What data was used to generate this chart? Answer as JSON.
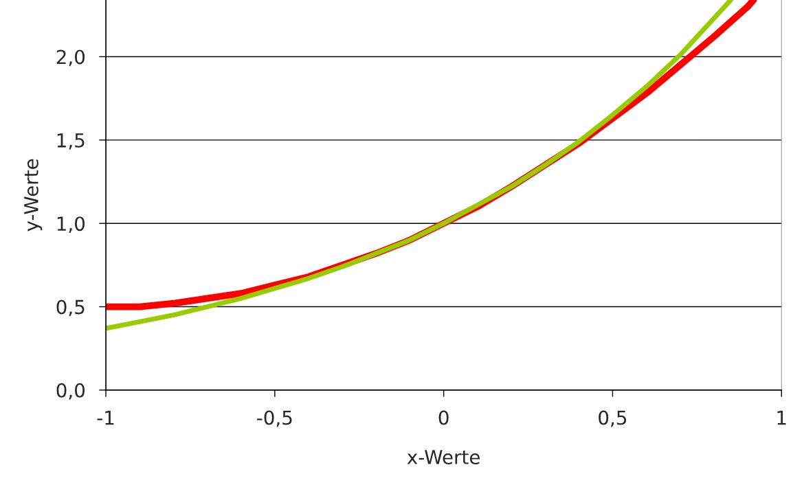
{
  "chart_data": {
    "type": "line",
    "xlabel": "x-Werte",
    "ylabel": "y-Werte",
    "xlim": [
      -1,
      1
    ],
    "ylim": [
      0,
      2.34
    ],
    "xticks": [
      {
        "value": -1,
        "label": "-1"
      },
      {
        "value": -0.5,
        "label": "-0,5"
      },
      {
        "value": 0,
        "label": "0"
      },
      {
        "value": 0.5,
        "label": "0,5"
      },
      {
        "value": 1,
        "label": "1"
      }
    ],
    "yticks": [
      {
        "value": 0,
        "label": "0,0"
      },
      {
        "value": 0.5,
        "label": "0,5"
      },
      {
        "value": 1,
        "label": "1,0"
      },
      {
        "value": 1.5,
        "label": "1,5"
      },
      {
        "value": 2,
        "label": "2,0"
      }
    ],
    "grid": "y",
    "legend": false,
    "marker": "none",
    "line_style": "solid",
    "series": [
      {
        "color": "#ff0000",
        "x": [
          -1,
          -0.9,
          -0.8,
          -0.7,
          -0.6,
          -0.5,
          -0.4,
          -0.3,
          -0.2,
          -0.1,
          0,
          0.1,
          0.2,
          0.3,
          0.4,
          0.5,
          0.6,
          0.7,
          0.8,
          0.9,
          0.917
        ],
        "values": [
          0.5,
          0.5,
          0.52,
          0.55,
          0.58,
          0.63,
          0.68,
          0.75,
          0.82,
          0.9,
          1.0,
          1.1,
          1.22,
          1.35,
          1.48,
          1.63,
          1.78,
          1.95,
          2.12,
          2.3,
          2.34
        ]
      },
      {
        "color": "#99cc00",
        "x": [
          -1,
          -0.9,
          -0.8,
          -0.7,
          -0.6,
          -0.5,
          -0.4,
          -0.3,
          -0.2,
          -0.1,
          0,
          0.1,
          0.2,
          0.3,
          0.4,
          0.5,
          0.6,
          0.7,
          0.8,
          0.85
        ],
        "values": [
          0.37,
          0.41,
          0.45,
          0.5,
          0.55,
          0.61,
          0.67,
          0.74,
          0.82,
          0.9,
          1.0,
          1.11,
          1.22,
          1.35,
          1.49,
          1.65,
          1.82,
          2.01,
          2.23,
          2.34
        ]
      }
    ]
  }
}
